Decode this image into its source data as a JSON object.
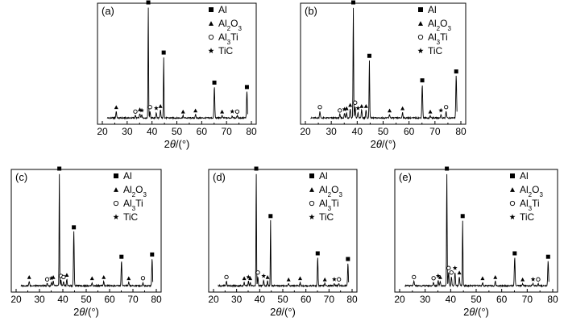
{
  "chart_data": [
    {
      "panel": "(a)",
      "type": "line",
      "xlabel_theta": "θ",
      "xlabel_pre": "2",
      "xlabel_post": "/(°)",
      "xlim": [
        20,
        80
      ],
      "xticks": [
        20,
        30,
        40,
        50,
        60,
        70,
        80
      ],
      "legend": [
        {
          "symbol": "square",
          "label": "Al"
        },
        {
          "symbol": "triangle",
          "label": "Al2O3"
        },
        {
          "symbol": "circle",
          "label": "Al3Ti"
        },
        {
          "symbol": "star",
          "label": "TiC"
        }
      ],
      "peaks": [
        {
          "x": 25.6,
          "h": 0.06,
          "marker": "triangle"
        },
        {
          "x": 33.3,
          "h": 0.02,
          "marker": "circle"
        },
        {
          "x": 35.1,
          "h": 0.04,
          "marker": "triangle"
        },
        {
          "x": 35.9,
          "h": 0.03,
          "marker": "star"
        },
        {
          "x": 38.5,
          "h": 1.0,
          "marker": "square"
        },
        {
          "x": 39.2,
          "h": 0.06,
          "marker": "circle"
        },
        {
          "x": 41.7,
          "h": 0.05,
          "marker": "star"
        },
        {
          "x": 43.4,
          "h": 0.07,
          "marker": "triangle"
        },
        {
          "x": 44.7,
          "h": 0.55,
          "marker": "square"
        },
        {
          "x": 52.5,
          "h": 0.02,
          "marker": "triangle"
        },
        {
          "x": 57.5,
          "h": 0.03,
          "marker": "triangle"
        },
        {
          "x": 65.1,
          "h": 0.28,
          "marker": "square"
        },
        {
          "x": 68.2,
          "h": 0.02,
          "marker": "triangle"
        },
        {
          "x": 72.3,
          "h": 0.02,
          "marker": "star"
        },
        {
          "x": 74.3,
          "h": 0.02,
          "marker": "circle"
        },
        {
          "x": 78.2,
          "h": 0.24,
          "marker": "square"
        }
      ]
    },
    {
      "panel": "(b)",
      "type": "line",
      "xlabel_theta": "θ",
      "xlabel_pre": "2",
      "xlabel_post": "/(°)",
      "xlim": [
        20,
        80
      ],
      "xticks": [
        20,
        30,
        40,
        50,
        60,
        70,
        80
      ],
      "legend": [
        {
          "symbol": "square",
          "label": "Al"
        },
        {
          "symbol": "triangle",
          "label": "Al2O3"
        },
        {
          "symbol": "circle",
          "label": "Al3Ti"
        },
        {
          "symbol": "star",
          "label": "TiC"
        }
      ],
      "peaks": [
        {
          "x": 25.6,
          "h": 0.06,
          "marker": "circle"
        },
        {
          "x": 33.3,
          "h": 0.03,
          "marker": "circle"
        },
        {
          "x": 35.1,
          "h": 0.04,
          "marker": "star"
        },
        {
          "x": 35.9,
          "h": 0.05,
          "marker": "triangle"
        },
        {
          "x": 37.3,
          "h": 0.08,
          "marker": "triangle"
        },
        {
          "x": 38.5,
          "h": 1.0,
          "marker": "square"
        },
        {
          "x": 39.2,
          "h": 0.1,
          "marker": "circle"
        },
        {
          "x": 40.3,
          "h": 0.05,
          "marker": "star"
        },
        {
          "x": 41.7,
          "h": 0.07,
          "marker": "triangle"
        },
        {
          "x": 43.4,
          "h": 0.07,
          "marker": "triangle"
        },
        {
          "x": 44.7,
          "h": 0.52,
          "marker": "square"
        },
        {
          "x": 52.5,
          "h": 0.03,
          "marker": "triangle"
        },
        {
          "x": 57.5,
          "h": 0.05,
          "marker": "triangle"
        },
        {
          "x": 65.1,
          "h": 0.3,
          "marker": "square"
        },
        {
          "x": 68.2,
          "h": 0.02,
          "marker": "triangle"
        },
        {
          "x": 72.3,
          "h": 0.03,
          "marker": "star"
        },
        {
          "x": 74.3,
          "h": 0.06,
          "marker": "circle"
        },
        {
          "x": 78.2,
          "h": 0.38,
          "marker": "square"
        }
      ]
    },
    {
      "panel": "(c)",
      "type": "line",
      "xlabel_theta": "θ",
      "xlabel_pre": "2",
      "xlabel_post": "/(°)",
      "xlim": [
        20,
        80
      ],
      "xticks": [
        20,
        30,
        40,
        50,
        60,
        70,
        80
      ],
      "legend": [
        {
          "symbol": "square",
          "label": "Al"
        },
        {
          "symbol": "triangle",
          "label": "Al2O3"
        },
        {
          "symbol": "circle",
          "label": "Al3Ti"
        },
        {
          "symbol": "star",
          "label": "TiC"
        }
      ],
      "peaks": [
        {
          "x": 25.6,
          "h": 0.04,
          "marker": "triangle"
        },
        {
          "x": 33.3,
          "h": 0.02,
          "marker": "circle"
        },
        {
          "x": 35.1,
          "h": 0.03,
          "marker": "star"
        },
        {
          "x": 35.9,
          "h": 0.04,
          "marker": "triangle"
        },
        {
          "x": 38.5,
          "h": 1.0,
          "marker": "square"
        },
        {
          "x": 39.2,
          "h": 0.05,
          "marker": "circle"
        },
        {
          "x": 40.3,
          "h": 0.04,
          "marker": "circle"
        },
        {
          "x": 41.7,
          "h": 0.06,
          "marker": "triangle"
        },
        {
          "x": 44.7,
          "h": 0.48,
          "marker": "square"
        },
        {
          "x": 52.5,
          "h": 0.03,
          "marker": "triangle"
        },
        {
          "x": 57.5,
          "h": 0.04,
          "marker": "triangle"
        },
        {
          "x": 65.1,
          "h": 0.22,
          "marker": "square"
        },
        {
          "x": 68.2,
          "h": 0.03,
          "marker": "triangle"
        },
        {
          "x": 74.3,
          "h": 0.03,
          "marker": "circle"
        },
        {
          "x": 78.2,
          "h": 0.24,
          "marker": "square"
        }
      ]
    },
    {
      "panel": "(d)",
      "type": "line",
      "xlabel_theta": "θ",
      "xlabel_pre": "2",
      "xlabel_post": "/(°)",
      "xlim": [
        20,
        80
      ],
      "xticks": [
        20,
        30,
        40,
        50,
        60,
        70,
        80
      ],
      "legend": [
        {
          "symbol": "square",
          "label": "Al"
        },
        {
          "symbol": "triangle",
          "label": "Al2O3"
        },
        {
          "symbol": "circle",
          "label": "Al3Ti"
        },
        {
          "symbol": "star",
          "label": "TiC"
        }
      ],
      "peaks": [
        {
          "x": 25.6,
          "h": 0.04,
          "marker": "circle"
        },
        {
          "x": 33.3,
          "h": 0.03,
          "marker": "triangle"
        },
        {
          "x": 35.1,
          "h": 0.04,
          "marker": "star"
        },
        {
          "x": 35.9,
          "h": 0.03,
          "marker": "triangle"
        },
        {
          "x": 38.5,
          "h": 1.0,
          "marker": "square"
        },
        {
          "x": 39.2,
          "h": 0.08,
          "marker": "circle"
        },
        {
          "x": 41.7,
          "h": 0.05,
          "marker": "star"
        },
        {
          "x": 43.4,
          "h": 0.04,
          "marker": "triangle"
        },
        {
          "x": 44.7,
          "h": 0.58,
          "marker": "square"
        },
        {
          "x": 52.5,
          "h": 0.02,
          "marker": "triangle"
        },
        {
          "x": 57.5,
          "h": 0.03,
          "marker": "triangle"
        },
        {
          "x": 65.1,
          "h": 0.25,
          "marker": "square"
        },
        {
          "x": 68.2,
          "h": 0.02,
          "marker": "triangle"
        },
        {
          "x": 72.3,
          "h": 0.02,
          "marker": "star"
        },
        {
          "x": 74.3,
          "h": 0.02,
          "marker": "circle"
        },
        {
          "x": 78.2,
          "h": 0.2,
          "marker": "square"
        }
      ]
    },
    {
      "panel": "(e)",
      "type": "line",
      "xlabel_theta": "θ",
      "xlabel_pre": "2",
      "xlabel_post": "/(°)",
      "xlim": [
        20,
        80
      ],
      "xticks": [
        20,
        30,
        40,
        50,
        60,
        70,
        80
      ],
      "legend": [
        {
          "symbol": "square",
          "label": "Al"
        },
        {
          "symbol": "triangle",
          "label": "Al2O3"
        },
        {
          "symbol": "circle",
          "label": "Al3Ti"
        },
        {
          "symbol": "star",
          "label": "TiC"
        }
      ],
      "peaks": [
        {
          "x": 25.6,
          "h": 0.04,
          "marker": "circle"
        },
        {
          "x": 33.3,
          "h": 0.03,
          "marker": "circle"
        },
        {
          "x": 35.1,
          "h": 0.05,
          "marker": "star"
        },
        {
          "x": 35.9,
          "h": 0.04,
          "marker": "triangle"
        },
        {
          "x": 38.5,
          "h": 1.0,
          "marker": "square"
        },
        {
          "x": 39.2,
          "h": 0.12,
          "marker": "circle"
        },
        {
          "x": 40.3,
          "h": 0.08,
          "marker": "circle"
        },
        {
          "x": 41.7,
          "h": 0.12,
          "marker": "star"
        },
        {
          "x": 43.4,
          "h": 0.08,
          "marker": "triangle"
        },
        {
          "x": 44.7,
          "h": 0.58,
          "marker": "square"
        },
        {
          "x": 52.5,
          "h": 0.03,
          "marker": "triangle"
        },
        {
          "x": 57.5,
          "h": 0.04,
          "marker": "triangle"
        },
        {
          "x": 65.1,
          "h": 0.25,
          "marker": "square"
        },
        {
          "x": 68.2,
          "h": 0.02,
          "marker": "triangle"
        },
        {
          "x": 72.3,
          "h": 0.02,
          "marker": "star"
        },
        {
          "x": 74.3,
          "h": 0.02,
          "marker": "circle"
        },
        {
          "x": 78.2,
          "h": 0.22,
          "marker": "square"
        }
      ]
    }
  ]
}
